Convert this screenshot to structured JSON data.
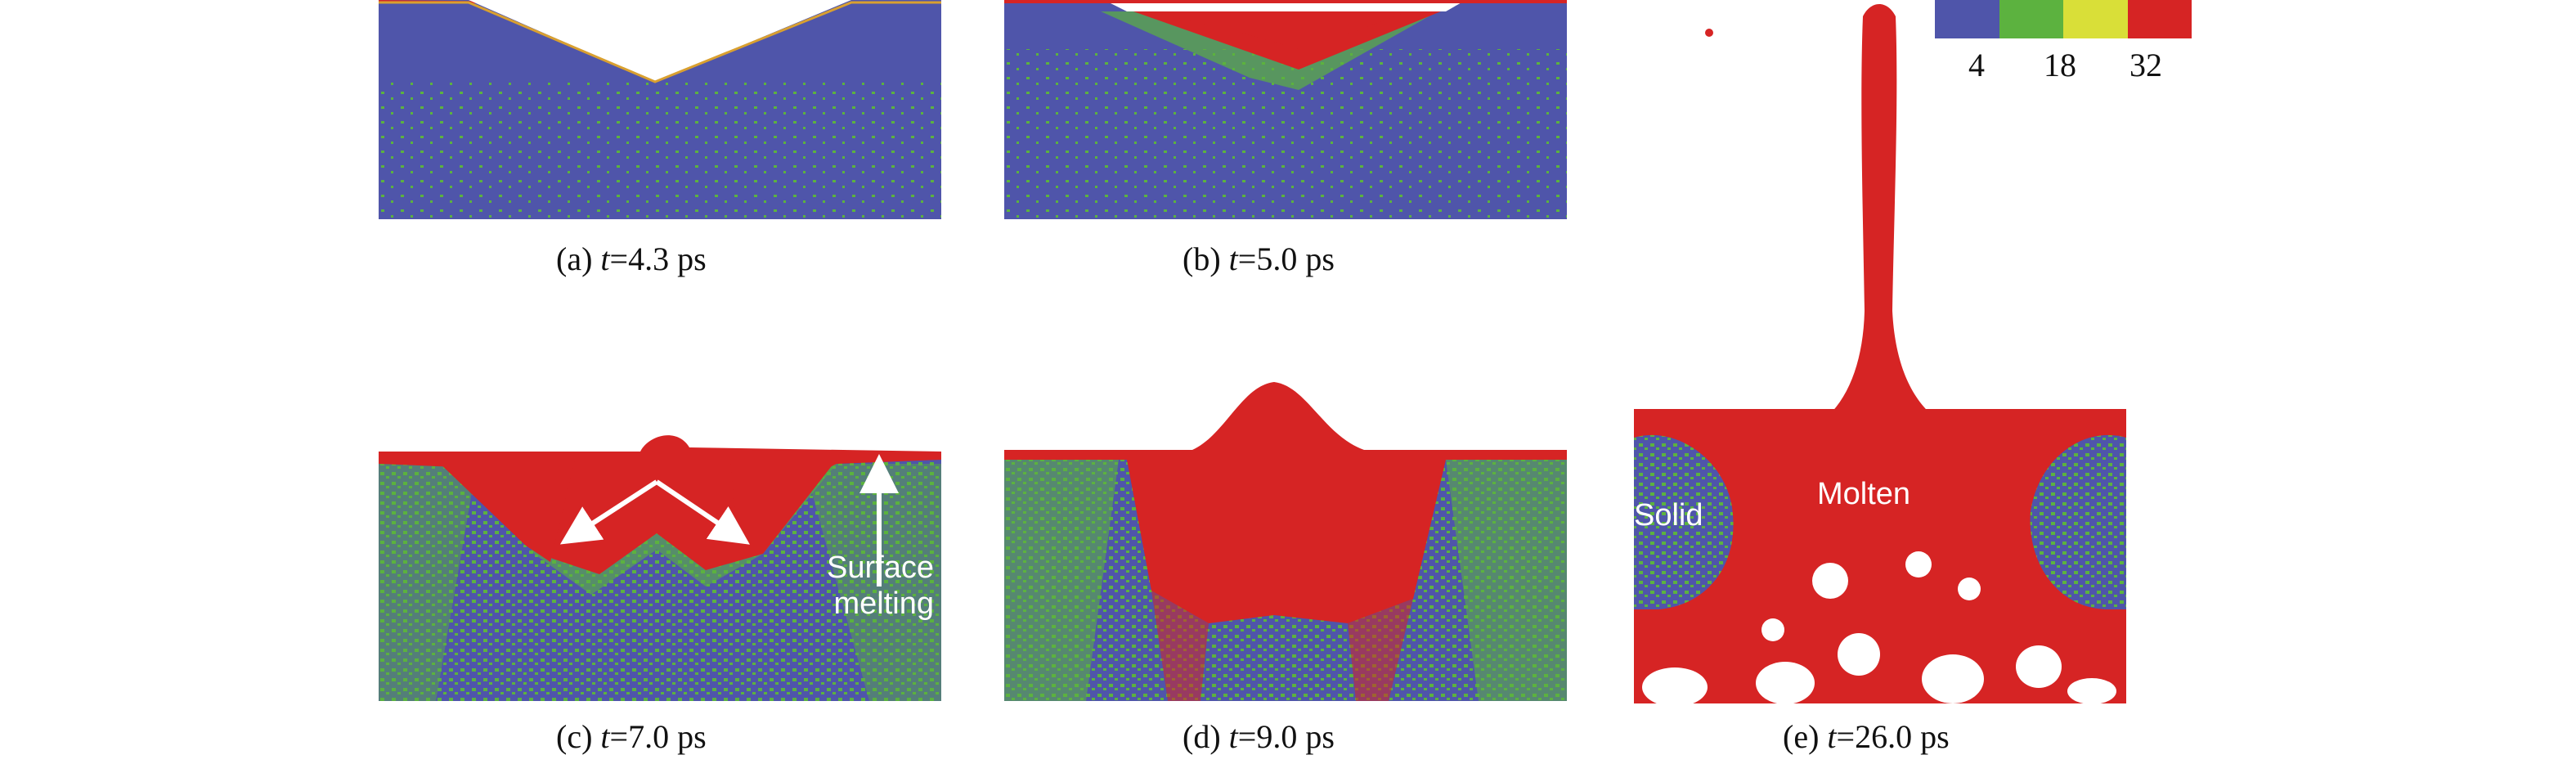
{
  "colors": {
    "blue": "#4f55aa",
    "green": "#5cb23f",
    "yellow": "#d9df38",
    "red": "#d62424"
  },
  "legend": {
    "ticks": [
      "4",
      "18",
      "32"
    ]
  },
  "panels": [
    {
      "label": "(a) ",
      "t": "t",
      "value": "=4.3 ps"
    },
    {
      "label": "(b) ",
      "t": "t",
      "value": "=5.0 ps"
    },
    {
      "label": "(c) ",
      "t": "t",
      "value": "=7.0 ps"
    },
    {
      "label": "(d) ",
      "t": "t",
      "value": "=9.0 ps"
    },
    {
      "label": "(e) ",
      "t": "t",
      "value": "=26.0 ps"
    }
  ],
  "annotations": {
    "surface_melting": "Surface\nmelting",
    "solid": "Solid",
    "molten": "Molten"
  }
}
